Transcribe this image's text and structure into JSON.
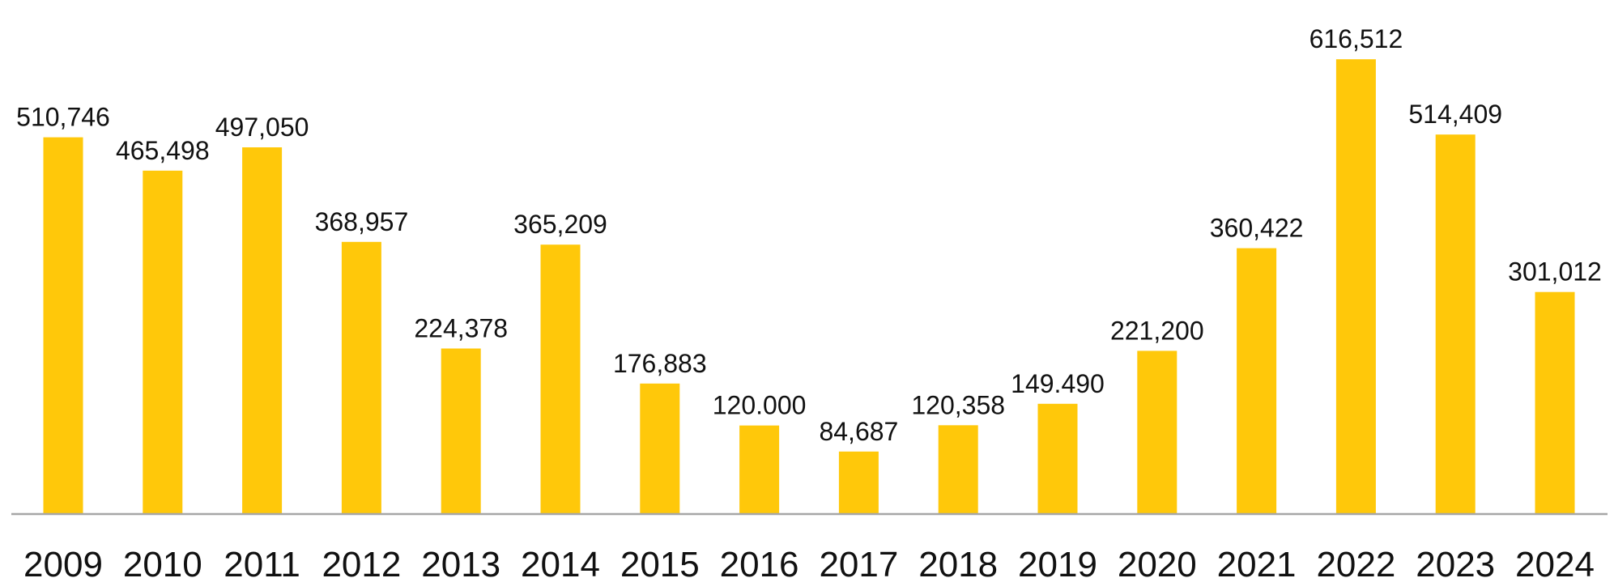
{
  "chart_data": {
    "type": "bar",
    "title": "",
    "xlabel": "",
    "ylabel": "",
    "categories": [
      "2009",
      "2010",
      "2011",
      "2012",
      "2013",
      "2014",
      "2015",
      "2016",
      "2017",
      "2018",
      "2019",
      "2020",
      "2021",
      "2022",
      "2023",
      "2024"
    ],
    "values": [
      510746,
      465498,
      497050,
      368957,
      224378,
      365209,
      176883,
      120000,
      84687,
      120358,
      149490,
      221200,
      360422,
      616512,
      514409,
      301012
    ],
    "data_labels": [
      "510,746",
      "465,498",
      "497,050",
      "368,957",
      "224,378",
      "365,209",
      "176,883",
      "120.000",
      "84,687",
      "120,358",
      "149.490",
      "221,200",
      "360,422",
      "616,512",
      "514,409",
      "301,012"
    ],
    "ylim": [
      0,
      620000
    ],
    "grid": false,
    "legend": "none",
    "colors": {
      "bar": "#FFC80A",
      "axis": "#A6A6A6",
      "text": "#111111"
    }
  }
}
